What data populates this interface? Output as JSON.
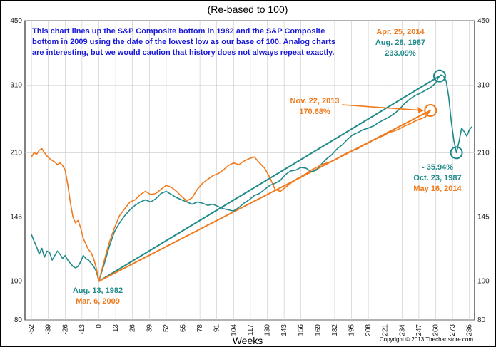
{
  "chart_data": {
    "type": "line",
    "subtitle": "(Re-based to 100)",
    "xlabel": "Weeks",
    "ylabel": "",
    "x_ticks": [
      -52,
      -39,
      -26,
      -13,
      0,
      13,
      26,
      39,
      52,
      65,
      78,
      91,
      104,
      117,
      130,
      143,
      156,
      169,
      182,
      195,
      208,
      221,
      234,
      247,
      260,
      273,
      286
    ],
    "xlim": [
      -57,
      290
    ],
    "y_ticks": [
      80,
      100,
      145,
      210,
      310,
      450
    ],
    "ylim": [
      80,
      450
    ],
    "y_scale": "log",
    "grid": true,
    "note": [
      "This chart lines up the S&P Composite bottom in 1982 and the S&P Composite",
      "bottom in 2009 using the date of the lowest low as our base of 100.  Analog charts",
      "are interesting, but we would caution that history does not always repeat exactly."
    ],
    "series": [
      {
        "name": "Aug. 13, 1982",
        "color": "#1f8a8a",
        "points": [
          [
            -52,
            131
          ],
          [
            -50,
            126
          ],
          [
            -48,
            122
          ],
          [
            -46,
            117
          ],
          [
            -44,
            121
          ],
          [
            -42,
            115
          ],
          [
            -40,
            119
          ],
          [
            -38,
            118
          ],
          [
            -36,
            113
          ],
          [
            -34,
            116
          ],
          [
            -32,
            119
          ],
          [
            -30,
            117
          ],
          [
            -28,
            114
          ],
          [
            -26,
            116
          ],
          [
            -24,
            113
          ],
          [
            -22,
            111
          ],
          [
            -20,
            109
          ],
          [
            -18,
            108
          ],
          [
            -16,
            109
          ],
          [
            -14,
            112
          ],
          [
            -12,
            116
          ],
          [
            -10,
            114
          ],
          [
            -8,
            113
          ],
          [
            -6,
            111
          ],
          [
            -4,
            109
          ],
          [
            -2,
            106
          ],
          [
            0,
            100
          ],
          [
            4,
            110
          ],
          [
            8,
            122
          ],
          [
            12,
            133
          ],
          [
            16,
            140
          ],
          [
            20,
            146
          ],
          [
            24,
            151
          ],
          [
            28,
            155
          ],
          [
            32,
            158
          ],
          [
            36,
            160
          ],
          [
            40,
            158
          ],
          [
            44,
            161
          ],
          [
            48,
            166
          ],
          [
            52,
            168
          ],
          [
            56,
            165
          ],
          [
            60,
            162
          ],
          [
            64,
            160
          ],
          [
            68,
            158
          ],
          [
            72,
            156
          ],
          [
            76,
            158
          ],
          [
            80,
            157
          ],
          [
            84,
            155
          ],
          [
            88,
            156
          ],
          [
            92,
            154
          ],
          [
            96,
            152
          ],
          [
            100,
            151
          ],
          [
            104,
            150
          ],
          [
            108,
            153
          ],
          [
            112,
            157
          ],
          [
            116,
            160
          ],
          [
            120,
            164
          ],
          [
            124,
            166
          ],
          [
            128,
            170
          ],
          [
            132,
            174
          ],
          [
            136,
            176
          ],
          [
            140,
            179
          ],
          [
            144,
            185
          ],
          [
            148,
            189
          ],
          [
            152,
            190
          ],
          [
            156,
            193
          ],
          [
            160,
            192
          ],
          [
            164,
            188
          ],
          [
            168,
            190
          ],
          [
            172,
            197
          ],
          [
            176,
            203
          ],
          [
            180,
            208
          ],
          [
            184,
            215
          ],
          [
            188,
            220
          ],
          [
            192,
            227
          ],
          [
            196,
            233
          ],
          [
            200,
            236
          ],
          [
            204,
            240
          ],
          [
            208,
            242
          ],
          [
            212,
            245
          ],
          [
            216,
            250
          ],
          [
            220,
            254
          ],
          [
            224,
            258
          ],
          [
            228,
            263
          ],
          [
            232,
            270
          ],
          [
            236,
            279
          ],
          [
            240,
            286
          ],
          [
            244,
            292
          ],
          [
            248,
            296
          ],
          [
            252,
            301
          ],
          [
            256,
            306
          ],
          [
            260,
            314
          ],
          [
            262,
            324
          ],
          [
            264,
            329
          ],
          [
            266,
            327
          ],
          [
            268,
            318
          ],
          [
            270,
            290
          ],
          [
            272,
            252
          ],
          [
            274,
            225
          ],
          [
            276,
            210
          ],
          [
            278,
            224
          ],
          [
            280,
            242
          ],
          [
            282,
            237
          ],
          [
            284,
            231
          ],
          [
            286,
            240
          ],
          [
            288,
            244
          ]
        ]
      },
      {
        "name": "Mar. 6, 2009",
        "color": "#f07a1c",
        "points": [
          [
            -52,
            205
          ],
          [
            -50,
            210
          ],
          [
            -48,
            208
          ],
          [
            -46,
            213
          ],
          [
            -44,
            215
          ],
          [
            -42,
            210
          ],
          [
            -40,
            206
          ],
          [
            -38,
            203
          ],
          [
            -36,
            201
          ],
          [
            -34,
            199
          ],
          [
            -32,
            196
          ],
          [
            -30,
            198
          ],
          [
            -28,
            195
          ],
          [
            -26,
            190
          ],
          [
            -24,
            175
          ],
          [
            -22,
            158
          ],
          [
            -20,
            145
          ],
          [
            -18,
            140
          ],
          [
            -16,
            142
          ],
          [
            -14,
            136
          ],
          [
            -12,
            128
          ],
          [
            -10,
            124
          ],
          [
            -8,
            120
          ],
          [
            -6,
            118
          ],
          [
            -4,
            114
          ],
          [
            -2,
            108
          ],
          [
            0,
            100
          ],
          [
            4,
            112
          ],
          [
            8,
            125
          ],
          [
            12,
            136
          ],
          [
            16,
            146
          ],
          [
            20,
            152
          ],
          [
            24,
            158
          ],
          [
            28,
            160
          ],
          [
            32,
            165
          ],
          [
            36,
            168
          ],
          [
            40,
            165
          ],
          [
            44,
            166
          ],
          [
            48,
            170
          ],
          [
            52,
            174
          ],
          [
            56,
            172
          ],
          [
            60,
            168
          ],
          [
            64,
            163
          ],
          [
            68,
            159
          ],
          [
            72,
            162
          ],
          [
            76,
            170
          ],
          [
            80,
            176
          ],
          [
            84,
            180
          ],
          [
            88,
            184
          ],
          [
            92,
            186
          ],
          [
            96,
            190
          ],
          [
            100,
            195
          ],
          [
            104,
            198
          ],
          [
            108,
            196
          ],
          [
            112,
            200
          ],
          [
            116,
            203
          ],
          [
            120,
            205
          ],
          [
            124,
            198
          ],
          [
            128,
            192
          ],
          [
            132,
            182
          ],
          [
            136,
            170
          ],
          [
            140,
            168
          ],
          [
            144,
            172
          ],
          [
            148,
            176
          ],
          [
            152,
            180
          ],
          [
            156,
            183
          ],
          [
            160,
            186
          ],
          [
            164,
            190
          ],
          [
            168,
            193
          ],
          [
            172,
            196
          ],
          [
            176,
            198
          ],
          [
            180,
            200
          ],
          [
            184,
            203
          ],
          [
            188,
            207
          ],
          [
            192,
            210
          ],
          [
            196,
            213
          ],
          [
            200,
            215
          ],
          [
            204,
            219
          ],
          [
            208,
            222
          ],
          [
            212,
            226
          ],
          [
            216,
            229
          ],
          [
            220,
            232
          ],
          [
            224,
            236
          ],
          [
            228,
            238
          ],
          [
            232,
            241
          ],
          [
            236,
            245
          ],
          [
            240,
            248
          ],
          [
            244,
            252
          ],
          [
            248,
            255
          ],
          [
            252,
            258
          ],
          [
            256,
            268
          ]
        ]
      }
    ],
    "annotations": [
      {
        "text": "Apr. 25, 2014",
        "color": "#f07a1c"
      },
      {
        "text": "Aug. 28, 1987",
        "color": "#1f8a8a"
      },
      {
        "text": "233.09%",
        "color": "#1f8a8a"
      },
      {
        "text": "Nov. 22, 2013",
        "color": "#f07a1c"
      },
      {
        "text": "170.68%",
        "color": "#f07a1c"
      },
      {
        "text": "- 35.94%",
        "color": "#1f8a8a"
      },
      {
        "text": "Oct. 23, 1987",
        "color": "#1f8a8a"
      },
      {
        "text": "May 16, 2014",
        "color": "#f07a1c"
      },
      {
        "text": "Aug. 13, 1982",
        "color": "#1f8a8a"
      },
      {
        "text": "Mar. 6, 2009",
        "color": "#f07a1c"
      }
    ],
    "trendlines": [
      {
        "from": [
          0,
          100
        ],
        "to": [
          263,
          327
        ],
        "color": "#1f8a8a"
      },
      {
        "from": [
          0,
          100
        ],
        "to": [
          256,
          268
        ],
        "color": "#f07a1c"
      }
    ],
    "markers": [
      {
        "at": [
          263,
          327
        ],
        "color": "#1f8a8a"
      },
      {
        "at": [
          256,
          268
        ],
        "color": "#f07a1c"
      },
      {
        "at": [
          276,
          210
        ],
        "color": "#1f8a8a"
      }
    ],
    "copyright": "Copyright © 2013 Thechartstore.com"
  }
}
